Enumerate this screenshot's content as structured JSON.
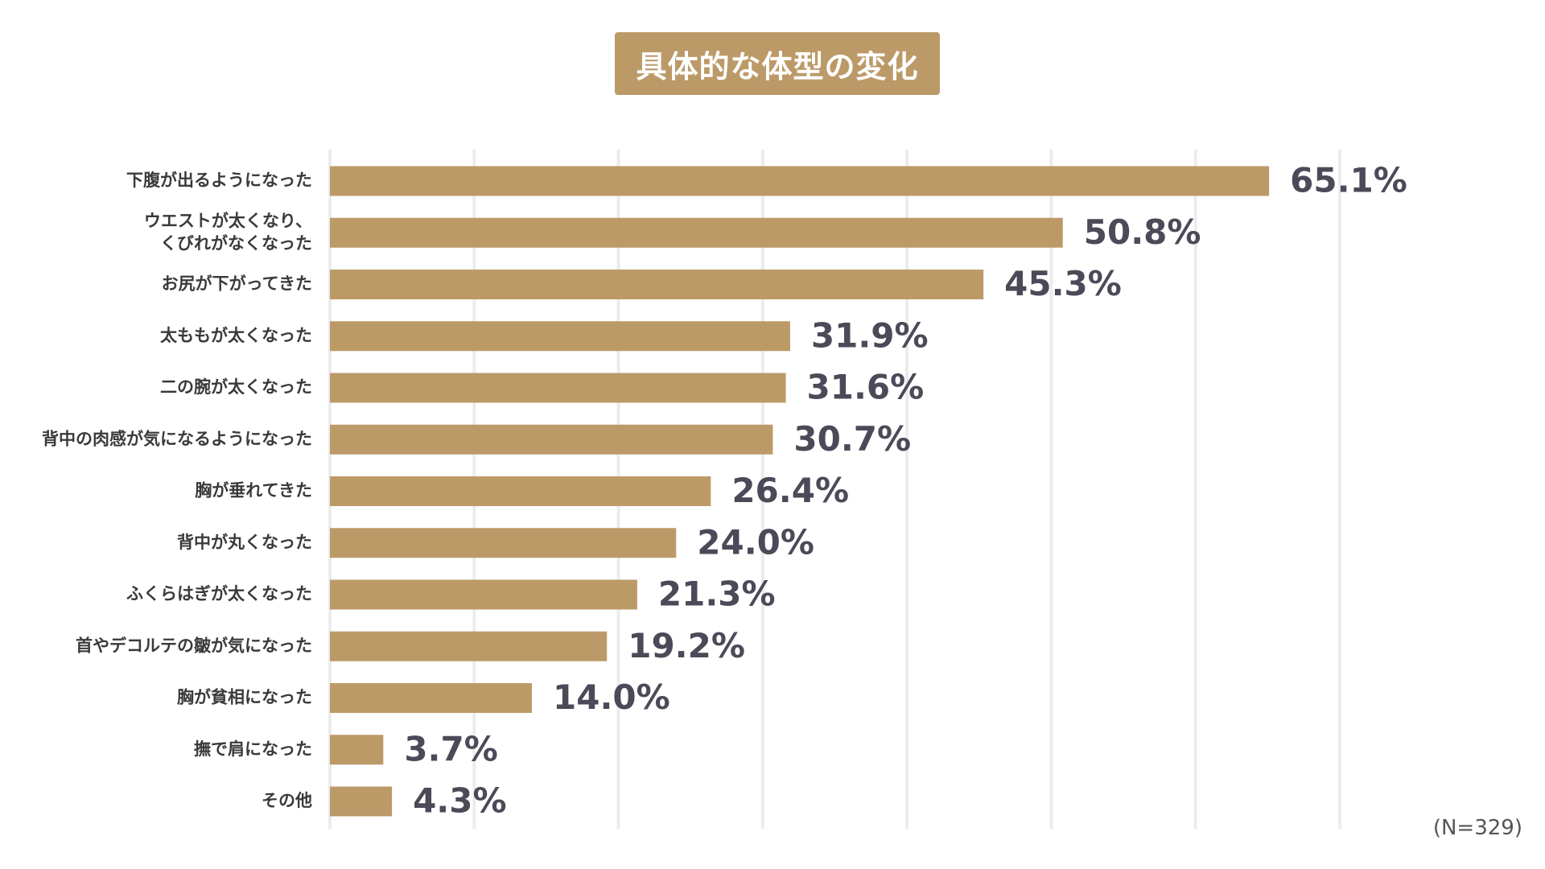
{
  "chart_data": {
    "type": "bar",
    "orientation": "horizontal",
    "title": "具体的な体型の変化",
    "categories": [
      "下腹が出るようになった",
      "ウエストが太くなり、\nくびれがなくなった",
      "お尻が下がってきた",
      "太ももが太くなった",
      "二の腕が太くなった",
      "背中の肉感が気になるようになった",
      "胸が垂れてきた",
      "背中が丸くなった",
      "ふくらはぎが太くなった",
      "首やデコルテの皺が気になった",
      "胸が貧相になった",
      "撫で肩になった",
      "その他"
    ],
    "values": [
      65.1,
      50.8,
      45.3,
      31.9,
      31.6,
      30.7,
      26.4,
      24.0,
      21.3,
      19.2,
      14.0,
      3.7,
      4.3
    ],
    "value_labels": [
      "65.1%",
      "50.8%",
      "45.3%",
      "31.9%",
      "31.6%",
      "30.7%",
      "26.4%",
      "24.0%",
      "21.3%",
      "19.2%",
      "14.0%",
      "3.7%",
      "4.3%"
    ],
    "xlim": [
      0,
      70
    ],
    "grid": true,
    "note": "(N=329)"
  },
  "colors": {
    "bar": "#bc9a68",
    "title_bg": "#bc9a68",
    "grid": "#ececec",
    "category_text": "#3a3a3a",
    "value_text": "#4a4a58"
  }
}
